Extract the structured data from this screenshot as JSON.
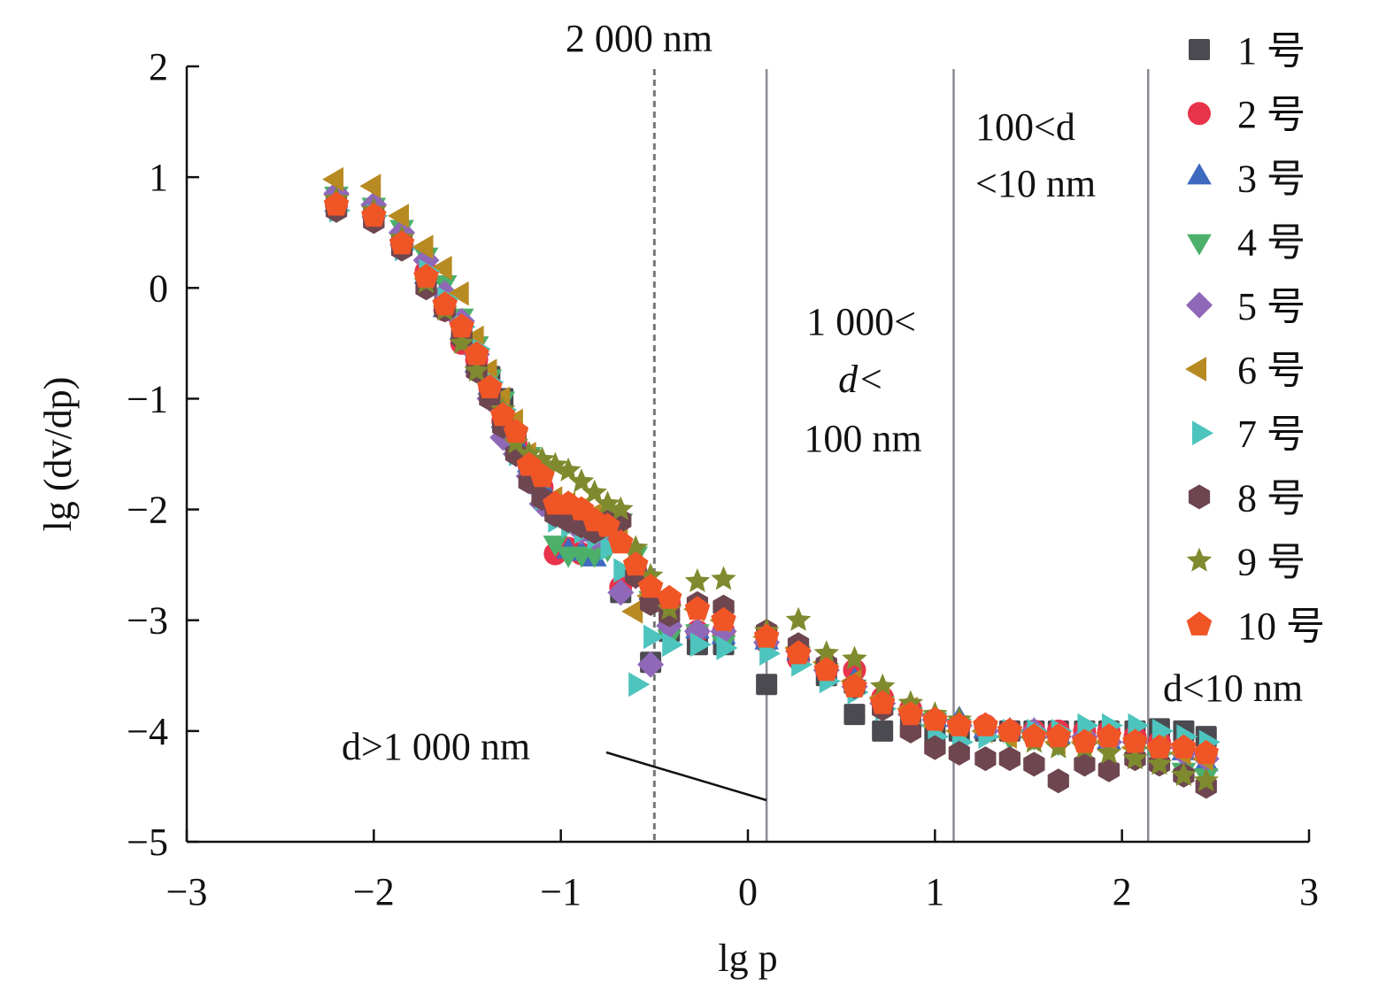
{
  "chart_data": {
    "type": "scatter",
    "xlabel": "lg p",
    "ylabel": "lg (dv/dp)",
    "xlim": [
      -3,
      3
    ],
    "ylim": [
      -5,
      2
    ],
    "xticks": [
      "−3",
      "−2",
      "−1",
      "0",
      "1",
      "2",
      "3"
    ],
    "xtick_values": [
      -3,
      -2,
      -1,
      0,
      1,
      2,
      3
    ],
    "yticks": [
      "2",
      "1",
      "0",
      "−1",
      "−2",
      "−3",
      "−4",
      "−5"
    ],
    "ytick_values": [
      2,
      1,
      0,
      -1,
      -2,
      -3,
      -4,
      -5
    ],
    "grid": false,
    "legend_placement": "right",
    "reference_lines": [
      {
        "x": -0.5,
        "style": "dashed",
        "label": "2 000 nm"
      },
      {
        "x": 0.1,
        "style": "solid"
      },
      {
        "x": 1.1,
        "style": "solid"
      },
      {
        "x": 2.14,
        "style": "solid"
      }
    ],
    "annotations": {
      "top": "2 000 nm",
      "region2_line1": "1 000<",
      "region2_line2": "d<",
      "region2_line3": "100 nm",
      "region3_line1": "100<d",
      "region3_line2": "<10 nm",
      "region4": "d<10 nm",
      "region1": "d>1 000 nm"
    },
    "x": [
      -2.2,
      -2.0,
      -1.85,
      -1.72,
      -1.62,
      -1.53,
      -1.45,
      -1.38,
      -1.31,
      -1.24,
      -1.17,
      -1.1,
      -1.03,
      -0.96,
      -0.89,
      -0.82,
      -0.75,
      -0.68,
      -0.6,
      -0.52,
      -0.42,
      -0.27,
      -0.13,
      0.1,
      0.27,
      0.42,
      0.57,
      0.72,
      0.87,
      1.0,
      1.13,
      1.27,
      1.4,
      1.53,
      1.66,
      1.8,
      1.93,
      2.07,
      2.2,
      2.33,
      2.45
    ],
    "series": [
      {
        "name": "1 号",
        "marker": "square",
        "color": "#4a4a50",
        "values": [
          0.75,
          0.65,
          0.4,
          0.1,
          -0.15,
          -0.4,
          -0.7,
          -0.8,
          -1.0,
          -1.4,
          -1.65,
          -1.85,
          -2.0,
          -2.05,
          -2.1,
          -2.15,
          -2.25,
          -2.75,
          -2.55,
          -3.38,
          -3.1,
          -3.22,
          -3.22,
          -3.58,
          -3.3,
          -3.5,
          -3.85,
          -4.0,
          -3.95,
          -4.0,
          -4.0,
          -4.0,
          -4.0,
          -4.0,
          -4.0,
          -4.0,
          -4.0,
          -4.0,
          -3.98,
          -4.0,
          -4.05
        ]
      },
      {
        "name": "2 号",
        "marker": "circle",
        "color": "#e8334a",
        "values": [
          0.75,
          0.65,
          0.4,
          0.15,
          -0.2,
          -0.5,
          -0.65,
          -0.9,
          -1.2,
          -1.4,
          -1.6,
          -1.8,
          -2.4,
          -2.35,
          -2.4,
          -2.2,
          -2.2,
          -2.7,
          -2.55,
          -2.8,
          -2.85,
          -3.1,
          -3.1,
          -3.2,
          -3.35,
          -3.45,
          -3.45,
          -3.7,
          -3.8,
          -3.9,
          -3.95,
          -3.95,
          -4.0,
          -4.0,
          -4.0,
          -4.0,
          -4.0,
          -4.05,
          -4.1,
          -4.15,
          -4.2
        ]
      },
      {
        "name": "3 号",
        "marker": "triangle-up",
        "color": "#3e6abf",
        "values": [
          0.75,
          0.7,
          0.45,
          0.1,
          -0.2,
          -0.4,
          -0.7,
          -0.9,
          -1.2,
          -1.4,
          -1.6,
          -1.8,
          -2.0,
          -2.38,
          -2.4,
          -2.45,
          -2.2,
          -2.3,
          -2.5,
          -2.75,
          -3.0,
          -3.1,
          -3.15,
          -3.2,
          -3.3,
          -3.4,
          -3.55,
          -3.7,
          -3.8,
          -3.9,
          -3.9,
          -4.0,
          -4.0,
          -4.0,
          -4.05,
          -4.05,
          -4.1,
          -4.1,
          -4.15,
          -4.2,
          -4.3
        ]
      },
      {
        "name": "4 号",
        "marker": "triangle-down",
        "color": "#4caf6a",
        "values": [
          0.85,
          0.75,
          0.55,
          0.3,
          0.05,
          -0.25,
          -0.5,
          -0.8,
          -1.0,
          -1.35,
          -1.5,
          -1.7,
          -2.3,
          -2.4,
          -2.4,
          -2.4,
          -2.35,
          -2.1,
          -2.4,
          -2.8,
          -3.15,
          -3.1,
          -3.2,
          -3.25,
          -3.3,
          -3.45,
          -3.6,
          -3.75,
          -3.85,
          -3.9,
          -3.95,
          -4.0,
          -4.05,
          -4.05,
          -4.1,
          -4.1,
          -4.15,
          -4.2,
          -4.25,
          -4.35,
          -4.4
        ]
      },
      {
        "name": "5 号",
        "marker": "diamond",
        "color": "#9068b8",
        "values": [
          0.85,
          0.75,
          0.5,
          0.25,
          -0.05,
          -0.3,
          -0.6,
          -1.0,
          -1.35,
          -1.5,
          -1.7,
          -1.95,
          -2.05,
          -2.1,
          -2.2,
          -2.25,
          -2.3,
          -2.75,
          -2.6,
          -3.4,
          -3.05,
          -3.1,
          -3.1,
          -3.2,
          -3.28,
          -3.45,
          -3.6,
          -3.75,
          -3.85,
          -3.9,
          -3.95,
          -4.0,
          -4.0,
          -4.0,
          -4.05,
          -4.05,
          -4.1,
          -4.1,
          -4.15,
          -4.2,
          -4.25
        ]
      },
      {
        "name": "6 号",
        "marker": "triangle-left",
        "color": "#b88a22",
        "values": [
          0.98,
          0.92,
          0.65,
          0.37,
          0.18,
          -0.05,
          -0.45,
          -0.75,
          -1.0,
          -1.2,
          -1.5,
          -1.7,
          -1.9,
          -1.95,
          -2.0,
          -2.05,
          -2.1,
          -2.2,
          -2.92,
          -2.78,
          -2.85,
          -2.9,
          -3.0,
          -3.15,
          -3.25,
          -3.38,
          -3.55,
          -3.7,
          -3.8,
          -3.95,
          -4.0,
          -4.0,
          -4.05,
          -4.05,
          -4.1,
          -4.1,
          -4.1,
          -4.15,
          -4.15,
          -4.2,
          -4.25
        ]
      },
      {
        "name": "7 号",
        "marker": "triangle-right",
        "color": "#4ec4be",
        "values": [
          0.7,
          0.65,
          0.35,
          0.15,
          -0.1,
          -0.35,
          -0.55,
          -0.85,
          -1.1,
          -1.5,
          -1.65,
          -1.9,
          -2.1,
          -2.15,
          -2.2,
          -2.25,
          -2.35,
          -2.55,
          -3.58,
          -3.15,
          -3.22,
          -3.22,
          -3.25,
          -3.3,
          -3.4,
          -3.55,
          -3.65,
          -3.8,
          -3.95,
          -4.05,
          -4.1,
          -4.05,
          -4.0,
          -4.0,
          -4.0,
          -3.95,
          -3.95,
          -3.95,
          -4.0,
          -4.05,
          -4.1
        ]
      },
      {
        "name": "8 号",
        "marker": "hexagon",
        "color": "#6e4650",
        "values": [
          0.7,
          0.6,
          0.35,
          0.0,
          -0.2,
          -0.45,
          -0.75,
          -1.0,
          -1.25,
          -1.5,
          -1.75,
          -1.9,
          -2.05,
          -2.1,
          -2.15,
          -2.2,
          -2.1,
          -2.1,
          -2.6,
          -2.85,
          -2.95,
          -2.85,
          -2.88,
          -3.1,
          -3.22,
          -3.4,
          -3.6,
          -3.8,
          -4.0,
          -4.15,
          -4.2,
          -4.25,
          -4.25,
          -4.3,
          -4.45,
          -4.3,
          -4.35,
          -4.25,
          -4.3,
          -4.4,
          -4.5
        ]
      },
      {
        "name": "9 号",
        "marker": "star",
        "color": "#7f8a2e",
        "values": [
          0.8,
          0.7,
          0.45,
          0.05,
          -0.2,
          -0.5,
          -0.75,
          -0.9,
          -1.1,
          -1.4,
          -1.5,
          -1.55,
          -1.6,
          -1.65,
          -1.75,
          -1.85,
          -1.95,
          -2.0,
          -2.35,
          -2.6,
          -2.9,
          -2.65,
          -2.63,
          -3.1,
          -3.0,
          -3.3,
          -3.35,
          -3.6,
          -3.75,
          -3.85,
          -3.9,
          -3.95,
          -4.0,
          -4.1,
          -4.15,
          -4.15,
          -4.2,
          -4.25,
          -4.3,
          -4.4,
          -4.45
        ]
      },
      {
        "name": "10 号",
        "marker": "pentagon",
        "color": "#f05526",
        "values": [
          0.75,
          0.65,
          0.4,
          0.1,
          -0.15,
          -0.35,
          -0.6,
          -0.9,
          -1.15,
          -1.3,
          -1.6,
          -1.7,
          -1.95,
          -1.95,
          -2.0,
          -2.1,
          -2.15,
          -2.3,
          -2.5,
          -2.7,
          -2.8,
          -2.9,
          -3.0,
          -3.15,
          -3.3,
          -3.45,
          -3.6,
          -3.75,
          -3.85,
          -3.9,
          -3.95,
          -3.95,
          -4.0,
          -4.05,
          -4.05,
          -4.1,
          -4.05,
          -4.1,
          -4.15,
          -4.15,
          -4.2
        ]
      }
    ]
  }
}
